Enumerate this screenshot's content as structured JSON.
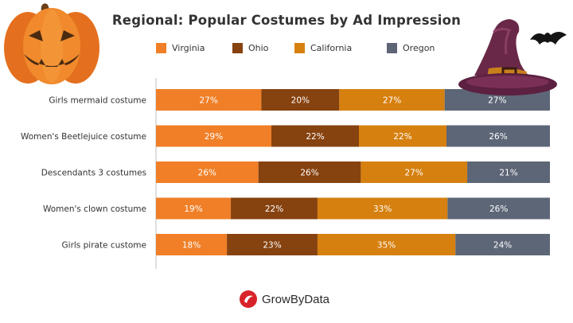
{
  "chart_data": {
    "type": "bar",
    "orientation": "horizontal",
    "stacked": true,
    "percent_stacked": true,
    "title": "Regional: Popular Costumes by Ad Impression",
    "categories": [
      "Girls mermaid costume",
      "Women's Beetlejuice costume",
      "Descendants 3 costumes",
      "Women's clown costume",
      "Girls pirate custome"
    ],
    "series": [
      {
        "name": "Virginia",
        "color": "#f07f27",
        "values": [
          27,
          29,
          26,
          19,
          18
        ],
        "labels": [
          "27%",
          "29%",
          "26%",
          "19%",
          "18%"
        ]
      },
      {
        "name": "Ohio",
        "color": "#86420f",
        "values": [
          20,
          22,
          26,
          22,
          23
        ],
        "labels": [
          "20%",
          "22%",
          "26%",
          "22%",
          "23%"
        ]
      },
      {
        "name": "California",
        "color": "#d6800f",
        "values": [
          27,
          22,
          27,
          33,
          35
        ],
        "labels": [
          "27%",
          "22%",
          "27%",
          "33%",
          "35%"
        ]
      },
      {
        "name": "Oregon",
        "color": "#5d6677",
        "values": [
          27,
          26,
          21,
          26,
          24
        ],
        "labels": [
          "27%",
          "26%",
          "21%",
          "26%",
          "24%"
        ]
      }
    ],
    "legend_position": "top",
    "grid": false
  },
  "branding": {
    "logo_text": "GrowByData",
    "logo_color": "#d8232a",
    "pumpkin_icon": "jack-o-lantern-icon",
    "hat_icon": "witch-hat-icon",
    "bat_icon": "bat-icon"
  }
}
